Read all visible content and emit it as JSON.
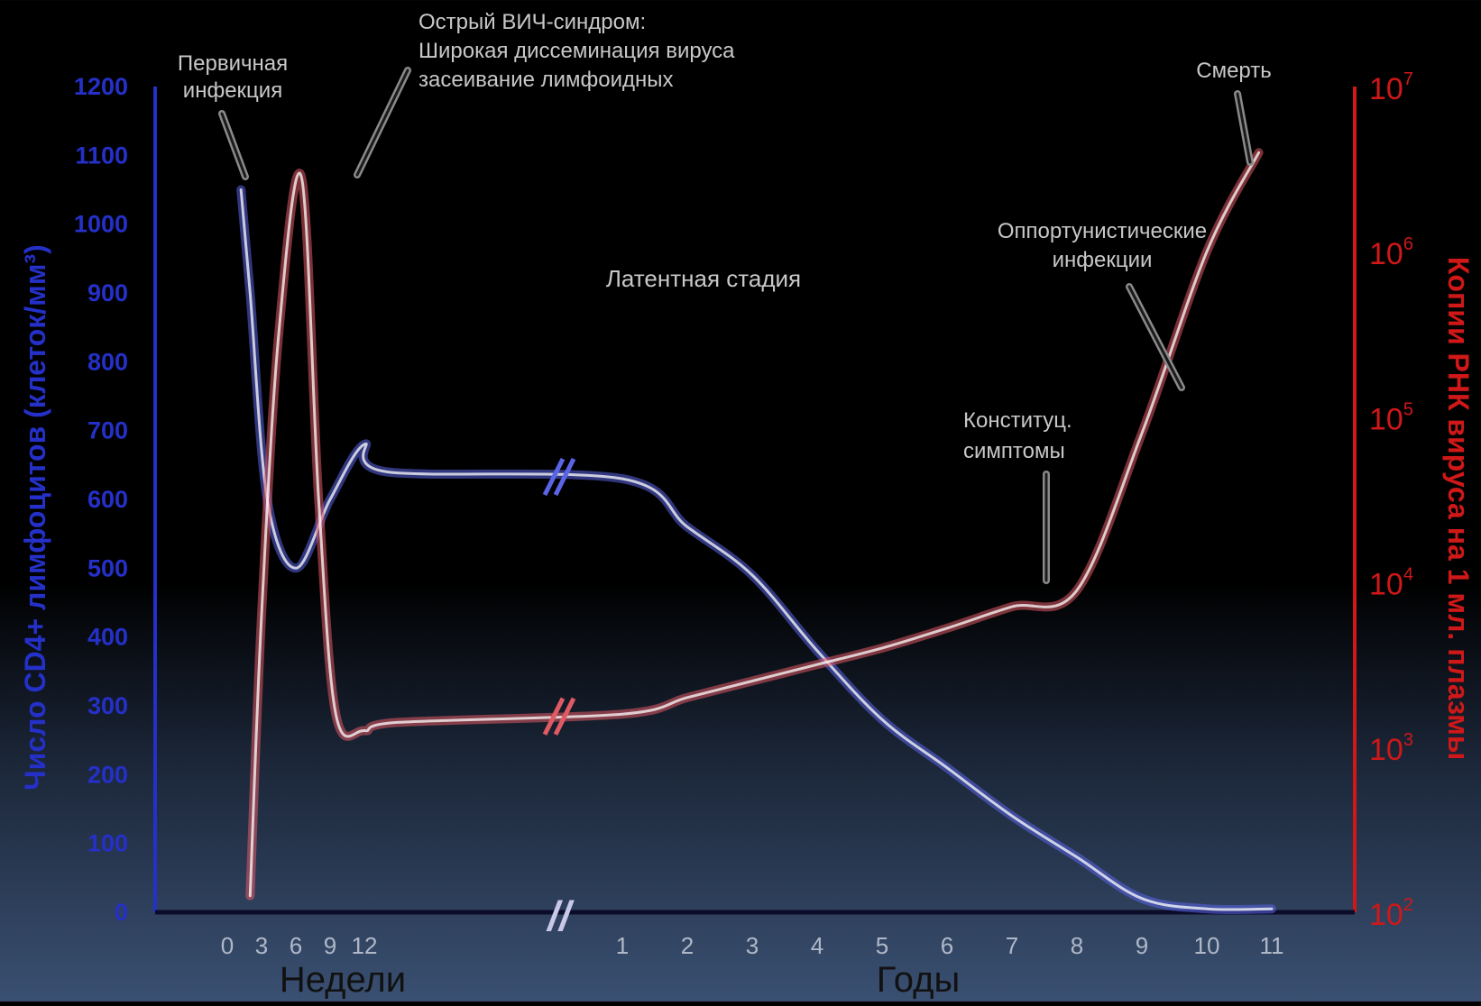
{
  "chart_data": {
    "type": "line",
    "colors": {
      "cd4": "#5a64e6",
      "rna": "#e05a64",
      "left_axis": "#2430c8",
      "right_axis": "#d01818",
      "annotation": "#c8c8c8"
    },
    "ylabel_left": "Число CD4+ лимфоцитов (клеток/мм³)",
    "ylabel_right": "Копии РНК вируса на 1 мл. плазмы",
    "yticks_left": [
      "0",
      "100",
      "200",
      "300",
      "400",
      "500",
      "600",
      "700",
      "800",
      "900",
      "1000",
      "1100",
      "1200"
    ],
    "ylim_left": [
      0,
      1200
    ],
    "yticks_right": [
      {
        "base": "10",
        "exp": "2"
      },
      {
        "base": "10",
        "exp": "3"
      },
      {
        "base": "10",
        "exp": "4"
      },
      {
        "base": "10",
        "exp": "5"
      },
      {
        "base": "10",
        "exp": "6"
      },
      {
        "base": "10",
        "exp": "7"
      }
    ],
    "ylim_right_log10": [
      2,
      7
    ],
    "x_weeks": {
      "label": "Недели",
      "ticks": [
        "0",
        "3",
        "6",
        "9",
        "12"
      ]
    },
    "x_years": {
      "label": "Годы",
      "ticks": [
        "1",
        "2",
        "3",
        "4",
        "5",
        "6",
        "7",
        "8",
        "9",
        "10",
        "11"
      ]
    },
    "axis_break": "//",
    "series": [
      {
        "key": "cd4",
        "weeks": [
          [
            1.2,
            1050
          ],
          [
            2,
            900
          ],
          [
            3.5,
            600
          ],
          [
            6,
            500
          ],
          [
            9,
            600
          ],
          [
            12,
            680
          ],
          [
            14,
            640
          ]
        ],
        "years": [
          [
            1,
            630
          ],
          [
            2,
            560
          ],
          [
            3,
            490
          ],
          [
            4,
            380
          ],
          [
            5,
            280
          ],
          [
            6,
            210
          ],
          [
            7,
            140
          ],
          [
            8,
            80
          ],
          [
            9,
            20
          ],
          [
            10,
            5
          ],
          [
            11,
            5
          ]
        ]
      },
      {
        "key": "rna_log10",
        "weeks": [
          [
            2,
            2.1
          ],
          [
            3,
            3.8
          ],
          [
            4.5,
            5.5
          ],
          [
            6.5,
            6.45
          ],
          [
            8,
            4.5
          ],
          [
            9.5,
            3.2
          ],
          [
            12,
            3.1
          ],
          [
            15,
            3.15
          ]
        ],
        "years": [
          [
            1,
            3.2
          ],
          [
            2,
            3.3
          ],
          [
            3,
            3.4
          ],
          [
            4,
            3.5
          ],
          [
            5,
            3.6
          ],
          [
            6,
            3.72
          ],
          [
            7,
            3.85
          ],
          [
            8,
            3.95
          ],
          [
            9,
            4.9
          ],
          [
            10,
            6.0
          ],
          [
            10.8,
            6.6
          ]
        ]
      }
    ],
    "annotations": [
      {
        "key": "primary",
        "lines": [
          "Первичная",
          "инфекция"
        ]
      },
      {
        "key": "acute",
        "lines": [
          "Острый ВИЧ-синдром:",
          "Широкая диссеминация вируса",
          "засеивание лимфоидных"
        ]
      },
      {
        "key": "death",
        "lines": [
          "Смерть"
        ]
      },
      {
        "key": "latent",
        "lines": [
          "Латентная стадия"
        ]
      },
      {
        "key": "opportunistic",
        "lines": [
          "Оппортунистические",
          "инфекции"
        ]
      },
      {
        "key": "symptoms",
        "lines": [
          "Конституц.",
          "симптомы"
        ]
      }
    ]
  }
}
